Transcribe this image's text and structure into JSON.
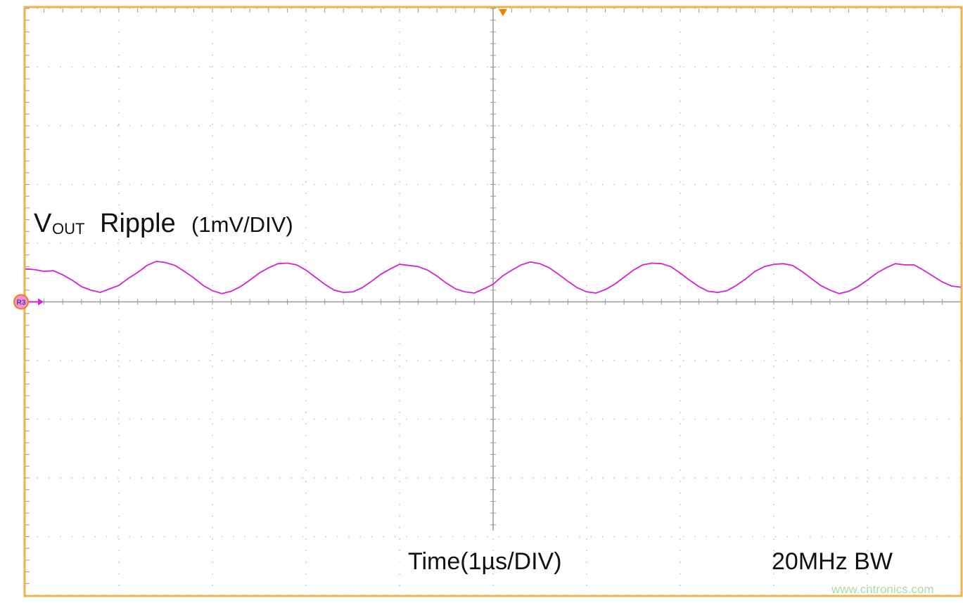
{
  "chart_data": {
    "type": "line",
    "title": {
      "symbol": "V",
      "subscript": "OUT",
      "name": "Ripple",
      "scale": "(1mV/DIV)"
    },
    "xlabel": "Time(1µs/DIV)",
    "bandwidth": "20MHz BW",
    "channel": "R3",
    "watermark": "www.cntronics.com",
    "x": [
      -5.0,
      -4.9,
      -4.8,
      -4.7,
      -4.6,
      -4.5,
      -4.4,
      -4.3,
      -4.2,
      -4.1,
      -4.0,
      -3.9,
      -3.8,
      -3.7,
      -3.6,
      -3.5,
      -3.4,
      -3.3,
      -3.2,
      -3.1,
      -3.0,
      -2.9,
      -2.8,
      -2.7,
      -2.6,
      -2.5,
      -2.4,
      -2.3,
      -2.2,
      -2.1,
      -2.0,
      -1.9,
      -1.8,
      -1.7,
      -1.6,
      -1.5,
      -1.4,
      -1.3,
      -1.2,
      -1.1,
      -1.0,
      -0.9,
      -0.8,
      -0.7,
      -0.6,
      -0.5,
      -0.4,
      -0.3,
      -0.2,
      -0.1,
      0.0,
      0.1,
      0.2,
      0.3,
      0.4,
      0.5,
      0.6,
      0.7,
      0.8,
      0.9,
      1.0,
      1.1,
      1.2,
      1.3,
      1.4,
      1.5,
      1.6,
      1.7,
      1.8,
      1.9,
      2.0,
      2.1,
      2.2,
      2.3,
      2.4,
      2.5,
      2.6,
      2.7,
      2.8,
      2.9,
      3.0,
      3.1,
      3.2,
      3.3,
      3.4,
      3.5,
      3.6,
      3.7,
      3.8,
      3.9,
      4.0,
      4.1,
      4.2,
      4.3,
      4.4,
      4.5,
      4.6,
      4.7,
      4.8,
      4.9,
      5.0
    ],
    "series": [
      {
        "name": "R3",
        "color": "#d61fd6",
        "values": [
          0.56,
          0.55,
          0.52,
          0.53,
          0.46,
          0.37,
          0.26,
          0.2,
          0.16,
          0.22,
          0.28,
          0.4,
          0.5,
          0.62,
          0.69,
          0.67,
          0.62,
          0.52,
          0.41,
          0.28,
          0.19,
          0.14,
          0.18,
          0.26,
          0.37,
          0.49,
          0.58,
          0.65,
          0.66,
          0.63,
          0.54,
          0.42,
          0.3,
          0.2,
          0.16,
          0.17,
          0.24,
          0.35,
          0.47,
          0.56,
          0.64,
          0.62,
          0.6,
          0.54,
          0.44,
          0.32,
          0.22,
          0.17,
          0.15,
          0.22,
          0.3,
          0.44,
          0.54,
          0.63,
          0.68,
          0.65,
          0.58,
          0.47,
          0.35,
          0.24,
          0.17,
          0.15,
          0.21,
          0.3,
          0.42,
          0.54,
          0.63,
          0.66,
          0.65,
          0.6,
          0.49,
          0.37,
          0.26,
          0.18,
          0.16,
          0.19,
          0.28,
          0.39,
          0.52,
          0.6,
          0.64,
          0.65,
          0.62,
          0.52,
          0.4,
          0.28,
          0.2,
          0.14,
          0.18,
          0.26,
          0.37,
          0.49,
          0.58,
          0.65,
          0.63,
          0.63,
          0.54,
          0.44,
          0.34,
          0.27,
          0.25
        ]
      }
    ],
    "xlim": [
      -5,
      5
    ],
    "ylim": [
      -5,
      5
    ],
    "xticks": [
      -5,
      -4,
      -3,
      -2,
      -1,
      0,
      1,
      2,
      3,
      4,
      5
    ],
    "yticks": [
      -5,
      -4,
      -3,
      -2,
      -1,
      0,
      1,
      2,
      3,
      4,
      5
    ],
    "grid": true
  }
}
